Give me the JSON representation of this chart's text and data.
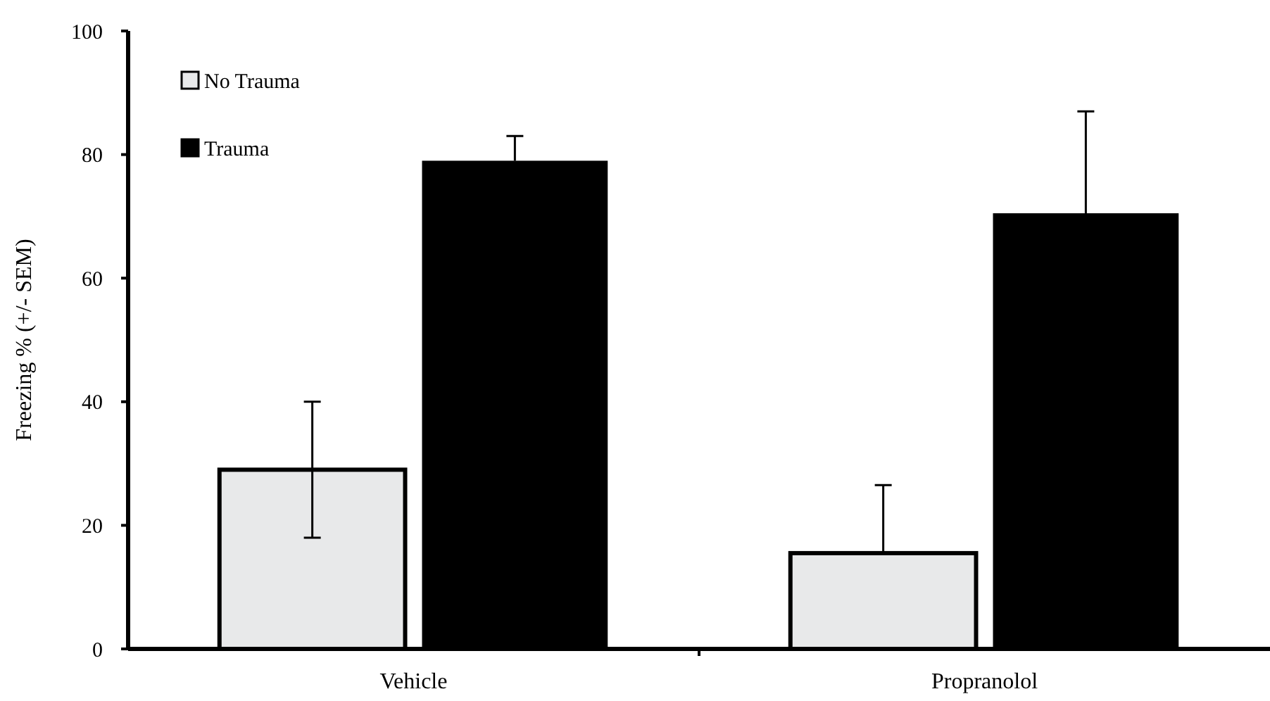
{
  "chart_data": {
    "type": "bar",
    "ylabel": "Freezing % (+/- SEM)",
    "categories": [
      "Vehicle",
      "Propranolol"
    ],
    "series": [
      {
        "name": "No Trauma",
        "color": "#e8e9ea",
        "values": [
          29,
          15.5
        ],
        "errors": [
          [
            18,
            40
          ],
          [
            15.5,
            26.5
          ]
        ]
      },
      {
        "name": "Trauma",
        "color": "#000000",
        "values": [
          79,
          70.5
        ],
        "errors": [
          [
            79,
            83
          ],
          [
            70.5,
            87
          ]
        ]
      }
    ],
    "ylim": [
      0,
      100
    ],
    "yticks": [
      0,
      20,
      40,
      60,
      80,
      100
    ],
    "legend": "top left"
  }
}
